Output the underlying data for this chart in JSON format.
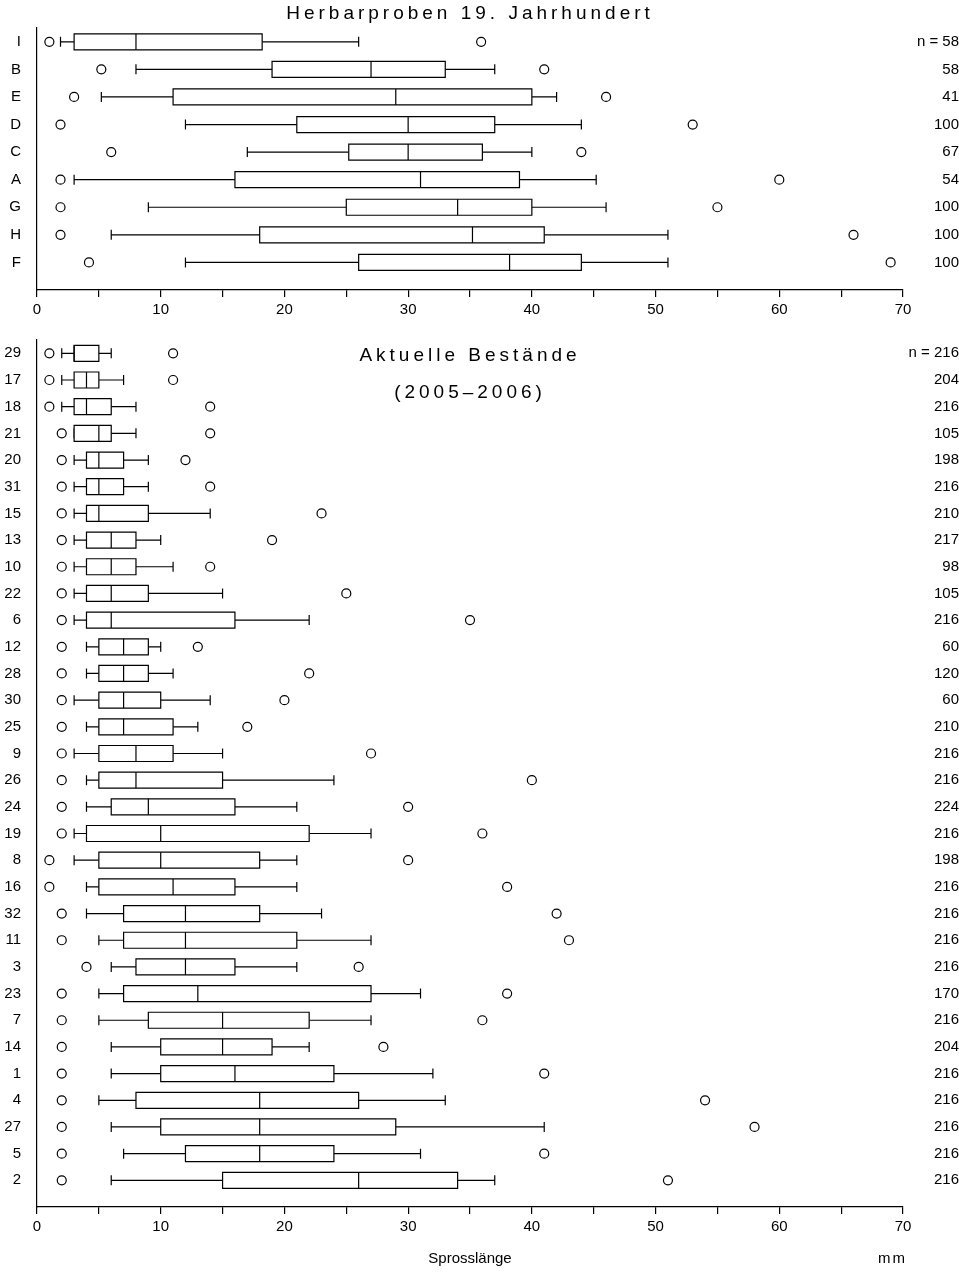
{
  "chart_data": [
    {
      "type": "box",
      "title": "Herbarproben 19. Jahrhundert",
      "orientation": "horizontal",
      "categories": [
        "I",
        "B",
        "E",
        "D",
        "C",
        "A",
        "G",
        "H",
        "F"
      ],
      "y2_categories": [
        "n = 58",
        "58",
        "41",
        "100",
        "67",
        "54",
        "100",
        "100",
        "100"
      ],
      "boxes": [
        {
          "low": 1.9,
          "q1": 3,
          "median": 8,
          "q3": 18.2,
          "high": 26,
          "outliers": [
            1,
            35.9
          ]
        },
        {
          "low": 8,
          "q1": 19,
          "median": 27,
          "q3": 33,
          "high": 37,
          "outliers": [
            5.2,
            41
          ]
        },
        {
          "low": 5.2,
          "q1": 11,
          "median": 29,
          "q3": 40,
          "high": 42,
          "outliers": [
            3,
            46
          ]
        },
        {
          "low": 12,
          "q1": 21,
          "median": 30,
          "q3": 37,
          "high": 44,
          "outliers": [
            1.9,
            53
          ]
        },
        {
          "low": 17,
          "q1": 25.2,
          "median": 30,
          "q3": 36,
          "high": 40,
          "outliers": [
            6,
            44
          ]
        },
        {
          "low": 3,
          "q1": 16,
          "median": 31,
          "q3": 39,
          "high": 45.2,
          "outliers": [
            1.9,
            60
          ]
        },
        {
          "low": 9,
          "q1": 25,
          "median": 34,
          "q3": 40,
          "high": 46,
          "outliers": [
            1.9,
            55
          ]
        },
        {
          "low": 6,
          "q1": 18,
          "median": 35.2,
          "q3": 41,
          "high": 51,
          "outliers": [
            1.9,
            66
          ]
        },
        {
          "low": 12,
          "q1": 26,
          "median": 38.2,
          "q3": 44,
          "high": 51,
          "outliers": [
            4.2,
            69
          ]
        }
      ],
      "xlim": [
        0,
        70
      ],
      "xticks": [
        0,
        {
          "value": 5,
          "label": null
        },
        10,
        {
          "value": 15,
          "label": null
        },
        20,
        {
          "value": 25,
          "label": null
        },
        30,
        {
          "value": 35,
          "label": null
        },
        40,
        {
          "value": 45,
          "label": null
        },
        50,
        {
          "value": 55,
          "label": null
        },
        60,
        {
          "value": 65,
          "label": null
        },
        70
      ],
      "grid": false,
      "legend": false,
      "marker": "circle"
    },
    {
      "type": "box",
      "title": "Aktuelle Bestände",
      "subtitle": "(2005–2006)",
      "xlabel": "Sprosslänge",
      "orientation": "horizontal",
      "categories": [
        "29",
        "17",
        "18",
        "21",
        "20",
        "31",
        "15",
        "13",
        "10",
        "22",
        "6",
        "12",
        "28",
        "30",
        "25",
        "9",
        "26",
        "24",
        "19",
        "8",
        "16",
        "32",
        "11",
        "3",
        "23",
        "7",
        "14",
        "1",
        "4",
        "27",
        "5",
        "2"
      ],
      "y2_categories": [
        "n = 216",
        "204",
        "216",
        "105",
        "198",
        "216",
        "210",
        "217",
        "98",
        "105",
        "216",
        "60",
        "120",
        "60",
        "210",
        "216",
        "216",
        "224",
        "216",
        "198",
        "216",
        "216",
        "216",
        "216",
        "170",
        "216",
        "204",
        "216",
        "216",
        "216",
        "216",
        "216"
      ],
      "boxes": [
        {
          "low": 2,
          "q1": 3,
          "median": 3,
          "q3": 5,
          "high": 6,
          "outliers": [
            1,
            11
          ]
        },
        {
          "low": 2,
          "q1": 3,
          "median": 4,
          "q3": 5,
          "high": 7,
          "outliers": [
            1,
            11
          ]
        },
        {
          "low": 2,
          "q1": 3,
          "median": 4,
          "q3": 6,
          "high": 8,
          "outliers": [
            1,
            14
          ]
        },
        {
          "low": 3,
          "q1": 3,
          "median": 5,
          "q3": 6,
          "high": 8,
          "outliers": [
            2,
            14
          ]
        },
        {
          "low": 3,
          "q1": 4,
          "median": 5,
          "q3": 7,
          "high": 9,
          "outliers": [
            2,
            12
          ]
        },
        {
          "low": 3,
          "q1": 4,
          "median": 5,
          "q3": 7,
          "high": 9,
          "outliers": [
            2,
            14
          ]
        },
        {
          "low": 3,
          "q1": 4,
          "median": 5,
          "q3": 9,
          "high": 14,
          "outliers": [
            2,
            23
          ]
        },
        {
          "low": 3,
          "q1": 4,
          "median": 6,
          "q3": 8,
          "high": 10,
          "outliers": [
            2,
            19
          ]
        },
        {
          "low": 3,
          "q1": 4,
          "median": 6,
          "q3": 8,
          "high": 11,
          "outliers": [
            2,
            14
          ]
        },
        {
          "low": 3,
          "q1": 4,
          "median": 6,
          "q3": 9,
          "high": 15,
          "outliers": [
            2,
            25
          ]
        },
        {
          "low": 3,
          "q1": 4,
          "median": 6,
          "q3": 16,
          "high": 22,
          "outliers": [
            2,
            35
          ]
        },
        {
          "low": 4,
          "q1": 5,
          "median": 7,
          "q3": 9,
          "high": 10,
          "outliers": [
            2,
            13
          ]
        },
        {
          "low": 4,
          "q1": 5,
          "median": 7,
          "q3": 9,
          "high": 11,
          "outliers": [
            2,
            22
          ]
        },
        {
          "low": 3,
          "q1": 5,
          "median": 7,
          "q3": 10,
          "high": 14,
          "outliers": [
            2,
            20
          ]
        },
        {
          "low": 4,
          "q1": 5,
          "median": 7,
          "q3": 11,
          "high": 13,
          "outliers": [
            2,
            17
          ]
        },
        {
          "low": 3,
          "q1": 5,
          "median": 8,
          "q3": 11,
          "high": 15,
          "outliers": [
            2,
            27
          ]
        },
        {
          "low": 4,
          "q1": 5,
          "median": 8,
          "q3": 15,
          "high": 24,
          "outliers": [
            2,
            40
          ]
        },
        {
          "low": 4,
          "q1": 6,
          "median": 9,
          "q3": 16,
          "high": 21,
          "outliers": [
            2,
            30
          ]
        },
        {
          "low": 3,
          "q1": 4,
          "median": 10,
          "q3": 22,
          "high": 27,
          "outliers": [
            2,
            36
          ]
        },
        {
          "low": 3,
          "q1": 5,
          "median": 10,
          "q3": 18,
          "high": 21,
          "outliers": [
            1,
            30
          ]
        },
        {
          "low": 4,
          "q1": 5,
          "median": 11,
          "q3": 16,
          "high": 21,
          "outliers": [
            1,
            38
          ]
        },
        {
          "low": 4,
          "q1": 7,
          "median": 12,
          "q3": 18,
          "high": 23,
          "outliers": [
            2,
            42
          ]
        },
        {
          "low": 5,
          "q1": 7,
          "median": 12,
          "q3": 21,
          "high": 27,
          "outliers": [
            2,
            43
          ]
        },
        {
          "low": 6,
          "q1": 8,
          "median": 12,
          "q3": 16,
          "high": 21,
          "outliers": [
            4,
            26
          ]
        },
        {
          "low": 5,
          "q1": 7,
          "median": 13,
          "q3": 27,
          "high": 31,
          "outliers": [
            2,
            38
          ]
        },
        {
          "low": 5,
          "q1": 9,
          "median": 15,
          "q3": 22,
          "high": 27,
          "outliers": [
            2,
            36
          ]
        },
        {
          "low": 6,
          "q1": 10,
          "median": 15,
          "q3": 19,
          "high": 22,
          "outliers": [
            2,
            28
          ]
        },
        {
          "low": 6,
          "q1": 10,
          "median": 16,
          "q3": 24,
          "high": 32,
          "outliers": [
            2,
            41
          ]
        },
        {
          "low": 5,
          "q1": 8,
          "median": 18,
          "q3": 26,
          "high": 33,
          "outliers": [
            2,
            54
          ]
        },
        {
          "low": 6,
          "q1": 10,
          "median": 18,
          "q3": 29,
          "high": 41,
          "outliers": [
            2,
            58
          ]
        },
        {
          "low": 7,
          "q1": 12,
          "median": 18,
          "q3": 24,
          "high": 31,
          "outliers": [
            2,
            41
          ]
        },
        {
          "low": 6,
          "q1": 15,
          "median": 26,
          "q3": 34,
          "high": 37,
          "outliers": [
            2,
            51
          ]
        }
      ],
      "xlim": [
        0,
        70
      ],
      "xticks": [
        0,
        {
          "value": 5,
          "label": null
        },
        10,
        {
          "value": 15,
          "label": null
        },
        20,
        {
          "value": 25,
          "label": null
        },
        30,
        {
          "value": 35,
          "label": null
        },
        40,
        {
          "value": 45,
          "label": null
        },
        50,
        {
          "value": 55,
          "label": null
        },
        60,
        {
          "value": 65,
          "label": null
        },
        70
      ],
      "annotations": [
        "mm"
      ],
      "grid": false,
      "legend": false,
      "marker": "circle"
    }
  ]
}
